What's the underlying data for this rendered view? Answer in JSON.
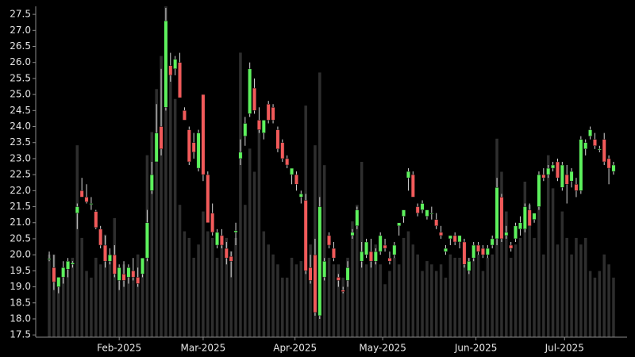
{
  "chart_data": {
    "type": "candlestick",
    "colors": {
      "up": "#5df25d",
      "down": "#f25a5a",
      "wick": "#d8d8d8",
      "volume": "#2e2e2e",
      "axis": "#8a8a8a",
      "background": "#000000"
    },
    "xlim": [
      -2.9,
      123.9
    ],
    "xticks": [
      {
        "value": 15,
        "label": "Feb-2025"
      },
      {
        "value": 33,
        "label": "Mar-2025"
      },
      {
        "value": 52.7,
        "label": "Apr-2025"
      },
      {
        "value": 71.5,
        "label": "May-2025"
      },
      {
        "value": 91.5,
        "label": "Jun-2025"
      },
      {
        "value": 110.5,
        "label": "Jul-2025"
      }
    ],
    "ylim": [
      17.43,
      27.75
    ],
    "yticks": [
      17.5,
      {
        "value": 18,
        "label": "18.0"
      },
      18.5,
      {
        "value": 19,
        "label": "19.0"
      },
      19.5,
      {
        "value": 20,
        "label": "20.0"
      },
      20.5,
      {
        "value": 21,
        "label": "21.0"
      },
      21.5,
      {
        "value": 22,
        "label": "22.0"
      },
      22.5,
      {
        "value": 23,
        "label": "23.0"
      },
      23.5,
      {
        "value": 24,
        "label": "24.0"
      },
      24.5,
      {
        "value": 25,
        "label": "25.0"
      },
      25.5,
      {
        "value": 26,
        "label": "26.0"
      },
      26.5,
      {
        "value": 27,
        "label": "27.0"
      },
      27.5
    ],
    "volume_lim": [
      0,
      100
    ],
    "open": [
      19.85,
      19.6,
      19.0,
      19.3,
      19.55,
      19.7,
      21.3,
      22.0,
      21.8,
      21.6,
      21.35,
      20.8,
      20.3,
      19.8,
      20.0,
      19.2,
      19.4,
      19.3,
      19.5,
      19.3,
      19.4,
      19.9,
      22.0,
      22.9,
      24.0,
      24.6,
      25.9,
      25.8,
      26.0,
      24.5,
      23.9,
      23.5,
      22.7,
      25.0,
      22.5,
      21.3,
      20.3,
      20.6,
      20.2,
      19.95,
      20.7,
      23.0,
      23.7,
      24.4,
      25.2,
      24.2,
      23.8,
      24.7,
      24.6,
      23.9,
      23.5,
      23.0,
      22.5,
      22.5,
      21.8,
      21.7,
      19.6,
      20.0,
      18.1,
      19.3,
      20.6,
      20.2,
      19.3,
      18.9,
      19.2,
      20.6,
      20.9,
      19.8,
      20.0,
      20.1,
      19.8,
      20.1,
      20.3,
      19.9,
      20.0,
      20.9,
      21.2,
      22.4,
      22.5,
      21.5,
      21.4,
      21.2,
      21.3,
      21.1,
      20.7,
      20.1,
      20.5,
      20.6,
      20.4,
      20.4,
      19.5,
      19.9,
      20.3,
      20.2,
      20.0,
      20.3,
      20.5,
      21.8,
      20.6,
      20.3,
      20.5,
      20.8,
      20.8,
      21.4,
      21.1,
      21.5,
      22.5,
      22.5,
      22.7,
      22.9,
      22.1,
      22.5,
      22.3,
      22.2,
      22.0,
      23.3,
      23.7,
      23.6,
      23.3,
      23.6,
      23.0,
      22.6
    ],
    "high": [
      20.1,
      20.0,
      19.3,
      19.8,
      19.9,
      19.8,
      21.6,
      22.4,
      22.2,
      21.8,
      21.4,
      20.9,
      20.6,
      20.2,
      20.3,
      19.7,
      19.8,
      19.7,
      19.9,
      19.6,
      19.9,
      21.4,
      22.9,
      24.7,
      25.8,
      27.7,
      26.3,
      26.2,
      26.3,
      24.6,
      24.0,
      23.8,
      23.9,
      25.0,
      22.6,
      21.6,
      20.8,
      20.8,
      20.4,
      20.1,
      21.0,
      23.6,
      24.3,
      26.0,
      25.5,
      24.6,
      24.2,
      24.8,
      24.7,
      24.0,
      23.6,
      23.1,
      22.7,
      22.6,
      22.0,
      21.9,
      20.0,
      20.5,
      21.8,
      19.9,
      20.7,
      20.4,
      19.4,
      19.0,
      19.8,
      20.8,
      21.5,
      20.4,
      20.5,
      20.5,
      20.2,
      20.7,
      20.5,
      20.1,
      20.4,
      21.0,
      21.4,
      22.7,
      22.6,
      21.6,
      21.7,
      21.4,
      21.5,
      21.3,
      20.9,
      20.3,
      20.6,
      20.7,
      20.6,
      20.5,
      19.9,
      20.4,
      20.4,
      20.3,
      20.3,
      20.6,
      22.4,
      21.9,
      20.9,
      20.4,
      21.0,
      21.2,
      21.6,
      21.6,
      21.3,
      22.6,
      22.7,
      22.8,
      22.9,
      23.0,
      22.9,
      22.8,
      22.7,
      22.4,
      23.7,
      23.6,
      24.0,
      23.8,
      23.4,
      23.8,
      23.1,
      22.9
    ],
    "low": [
      19.8,
      18.9,
      18.8,
      19.1,
      19.3,
      19.6,
      20.8,
      21.8,
      21.6,
      21.4,
      20.8,
      20.2,
      19.6,
      19.7,
      19.3,
      18.9,
      19.0,
      19.1,
      19.2,
      19.0,
      19.3,
      19.8,
      21.9,
      22.9,
      23.1,
      24.5,
      25.4,
      25.6,
      24.9,
      24.2,
      22.8,
      23.0,
      22.6,
      22.3,
      21.0,
      20.6,
      20.2,
      20.2,
      19.7,
      19.3,
      20.3,
      22.8,
      23.4,
      24.3,
      24.4,
      23.8,
      23.6,
      24.1,
      24.1,
      23.2,
      22.9,
      22.7,
      22.2,
      22.0,
      21.6,
      19.4,
      19.1,
      18.1,
      18.0,
      19.2,
      20.2,
      19.8,
      19.0,
      18.8,
      19.0,
      20.5,
      20.8,
      19.6,
      19.9,
      19.6,
      19.7,
      20.0,
      20.1,
      19.7,
      19.9,
      20.6,
      21.0,
      22.0,
      21.8,
      21.2,
      21.3,
      21.1,
      21.1,
      20.8,
      20.5,
      20.0,
      20.3,
      20.3,
      20.2,
      19.6,
      19.4,
      19.8,
      20.0,
      19.9,
      19.9,
      20.2,
      20.3,
      20.4,
      20.5,
      20.1,
      20.4,
      20.6,
      20.7,
      20.9,
      21.0,
      21.4,
      22.3,
      22.4,
      22.6,
      22.3,
      22.0,
      21.6,
      22.1,
      21.8,
      21.9,
      23.1,
      23.6,
      23.3,
      23.2,
      22.8,
      22.2,
      22.5
    ],
    "close": [
      19.88,
      19.15,
      19.3,
      19.6,
      19.8,
      19.75,
      21.5,
      21.8,
      21.65,
      21.6,
      20.85,
      20.3,
      19.8,
      20.0,
      19.4,
      19.6,
      19.2,
      19.6,
      19.3,
      19.1,
      19.9,
      21.0,
      22.5,
      23.8,
      23.3,
      27.3,
      25.6,
      26.1,
      24.9,
      24.2,
      22.9,
      23.2,
      23.8,
      22.5,
      21.0,
      20.7,
      20.7,
      20.3,
      19.9,
      19.8,
      20.75,
      23.2,
      24.1,
      25.8,
      24.5,
      23.9,
      24.2,
      24.2,
      24.2,
      23.3,
      23.0,
      22.8,
      22.7,
      22.2,
      21.9,
      19.5,
      19.2,
      18.2,
      21.5,
      19.8,
      20.3,
      19.9,
      19.2,
      18.85,
      19.6,
      20.7,
      21.4,
      20.1,
      20.4,
      19.8,
      20.1,
      20.6,
      20.2,
      19.8,
      20.3,
      21.0,
      21.4,
      22.6,
      21.8,
      21.3,
      21.6,
      21.4,
      21.3,
      20.9,
      20.6,
      20.2,
      20.6,
      20.4,
      20.6,
      19.7,
      19.8,
      20.3,
      20.1,
      20.0,
      20.2,
      20.5,
      22.1,
      20.5,
      20.7,
      20.2,
      20.9,
      21.0,
      21.5,
      20.9,
      21.3,
      22.5,
      22.4,
      22.7,
      22.8,
      22.4,
      22.8,
      22.2,
      22.6,
      22.0,
      23.6,
      23.5,
      23.9,
      23.4,
      23.3,
      22.9,
      22.7,
      22.8
    ],
    "volume": [
      25,
      25,
      18,
      20,
      22,
      24,
      58,
      30,
      20,
      18,
      24,
      22,
      31,
      25,
      36,
      20,
      22,
      20,
      18,
      25,
      20,
      55,
      62,
      75,
      85,
      100,
      80,
      72,
      40,
      32,
      30,
      24,
      28,
      38,
      32,
      30,
      24,
      28,
      30,
      26,
      30,
      86,
      40,
      57,
      50,
      65,
      32,
      28,
      25,
      22,
      18,
      18,
      24,
      22,
      23,
      70,
      28,
      58,
      80,
      52,
      24,
      22,
      22,
      18,
      24,
      35,
      40,
      53,
      22,
      25,
      28,
      22,
      16,
      20,
      24,
      22,
      30,
      32,
      28,
      25,
      20,
      23,
      22,
      20,
      22,
      18,
      25,
      24,
      24,
      22,
      24,
      28,
      25,
      20,
      24,
      25,
      60,
      50,
      38,
      24,
      28,
      30,
      47,
      40,
      30,
      40,
      25,
      55,
      45,
      28,
      38,
      30,
      25,
      30,
      28,
      30,
      20,
      18,
      20,
      25,
      22,
      18
    ]
  }
}
